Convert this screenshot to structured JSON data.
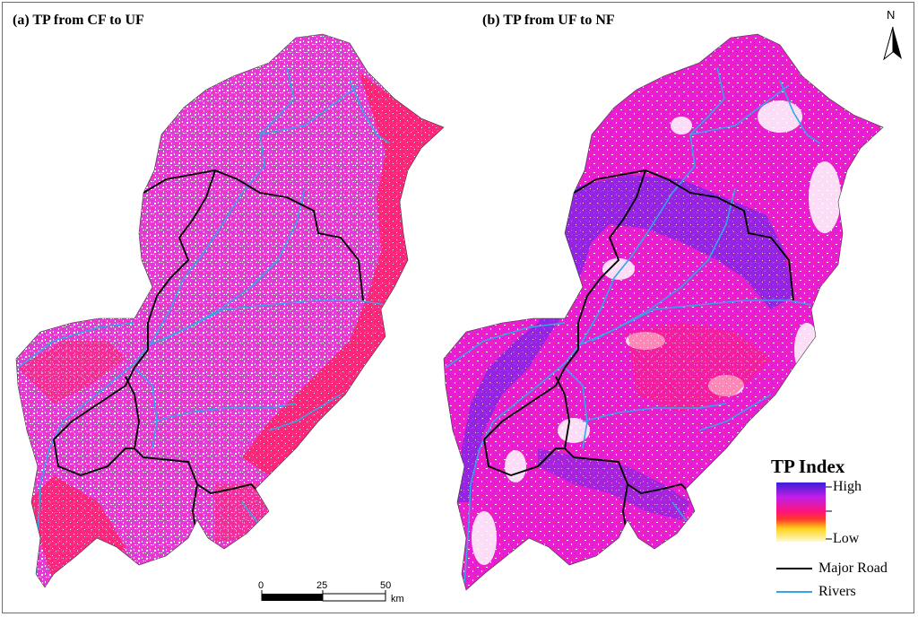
{
  "panels": {
    "a_title": "(a)  TP from CF to UF",
    "b_title": "(b)  TP from UF to NF"
  },
  "north_arrow": {
    "label": "N",
    "icon": "north-arrow-icon"
  },
  "legend": {
    "title": "TP Index",
    "gradient_labels": {
      "high": "High",
      "mid": "",
      "low": "Low"
    },
    "gradient_colors": [
      "#3b1fd6",
      "#c21ee8",
      "#ff1477",
      "#ff3a2a",
      "#ffd21a",
      "#fffad0"
    ],
    "major_road_label": "Major Road",
    "rivers_label": "Rivers",
    "major_road_color": "#000000",
    "rivers_color": "#33a6e6"
  },
  "scale_bar": {
    "ticks": [
      "0",
      "25",
      "50"
    ],
    "unit": "km"
  }
}
